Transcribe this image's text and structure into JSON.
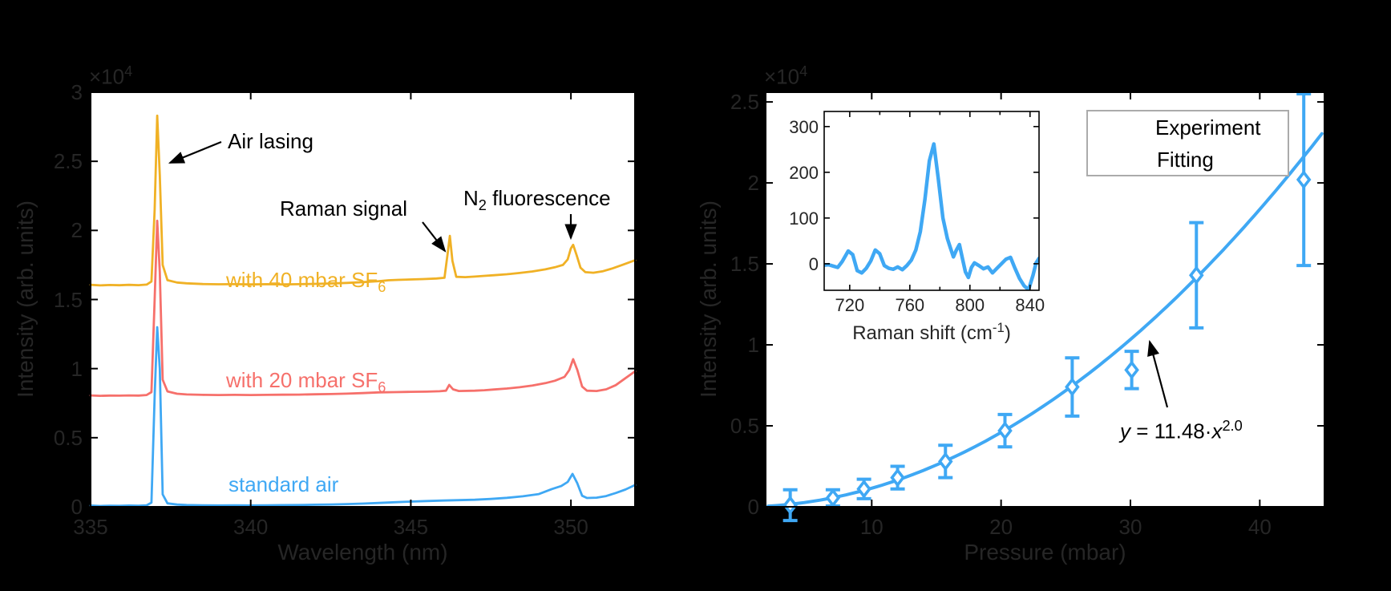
{
  "panel_a": {
    "exp_base": "×10",
    "exp_exp": "4",
    "ylabel": "Intensity (arb. units)",
    "xlabel": "Wavelength (nm)",
    "annotations": {
      "air_lasing": "Air lasing",
      "raman_signal": "Raman signal",
      "n2_pre": "N",
      "n2_sub": "2",
      "n2_post": " fluorescence"
    },
    "curve_labels": {
      "sf40_pre": "with 40 mbar SF",
      "sf40_sub": "6",
      "sf20_pre": "with 20 mbar SF",
      "sf20_sub": "6",
      "standard_air": "standard air"
    }
  },
  "panel_b": {
    "exp_base": "×10",
    "exp_exp": "4",
    "ylabel": "Intensity (arb. units)",
    "xlabel": "Pressure (mbar)",
    "legend": {
      "experiment": "Experiment",
      "fitting": "Fitting"
    },
    "equation": {
      "y": "y",
      "mid": " = 11.48·",
      "x": "x",
      "exp": "2.0"
    },
    "inset": {
      "xlabel_pre": "Raman shift (cm",
      "xlabel_sup": "-1",
      "xlabel_post": ")"
    }
  },
  "colors": {
    "sf40_yellow": "#F0B125",
    "sf20_red": "#F6706B",
    "blue": "#3FA8F4",
    "tick_text": "#262626",
    "annotation_text": "#000000",
    "legend_border": "#ababab",
    "plot_bg": "#ffffff",
    "figure_bg": "#000000"
  },
  "chart_data": [
    {
      "id": "spectra",
      "type": "line",
      "xlabel": "Wavelength (nm)",
      "ylabel": "Intensity (arb. units)",
      "xlim": [
        335,
        352
      ],
      "ylim": [
        0,
        30000
      ],
      "x_ticks": [
        [
          335,
          "335"
        ],
        [
          340,
          "340"
        ],
        [
          345,
          "345"
        ],
        [
          350,
          "350"
        ]
      ],
      "y_ticks": [
        [
          0,
          "0"
        ],
        [
          5000,
          "0.5"
        ],
        [
          10000,
          "1"
        ],
        [
          15000,
          "1.5"
        ],
        [
          20000,
          "2"
        ],
        [
          25000,
          "2.5"
        ],
        [
          30000,
          "3"
        ]
      ],
      "y_scale": "×10^4",
      "annotations": [
        "Air lasing",
        "Raman signal",
        "N2 fluorescence"
      ],
      "series": [
        {
          "name": "with 40 mbar SF6",
          "color": "#F0B125",
          "offset": 16000,
          "points": [
            [
              335,
              16060
            ],
            [
              335.3,
              16020
            ],
            [
              335.6,
              16050
            ],
            [
              335.9,
              16030
            ],
            [
              336.2,
              16060
            ],
            [
              336.5,
              16040
            ],
            [
              336.75,
              16080
            ],
            [
              336.9,
              16300
            ],
            [
              337.0,
              21500
            ],
            [
              337.08,
              28300
            ],
            [
              337.16,
              24000
            ],
            [
              337.25,
              17500
            ],
            [
              337.4,
              16400
            ],
            [
              337.7,
              16230
            ],
            [
              338,
              16170
            ],
            [
              338.5,
              16120
            ],
            [
              339,
              16100
            ],
            [
              339.5,
              16110
            ],
            [
              340,
              16090
            ],
            [
              340.5,
              16110
            ],
            [
              341,
              16090
            ],
            [
              341.5,
              16110
            ],
            [
              342,
              16130
            ],
            [
              342.5,
              16160
            ],
            [
              343,
              16200
            ],
            [
              343.5,
              16260
            ],
            [
              344,
              16330
            ],
            [
              344.3,
              16390
            ],
            [
              344.6,
              16420
            ],
            [
              345,
              16450
            ],
            [
              345.4,
              16480
            ],
            [
              345.8,
              16520
            ],
            [
              346.05,
              16570
            ],
            [
              346.15,
              18300
            ],
            [
              346.22,
              19600
            ],
            [
              346.3,
              17800
            ],
            [
              346.42,
              16640
            ],
            [
              346.7,
              16620
            ],
            [
              347,
              16660
            ],
            [
              347.3,
              16710
            ],
            [
              347.6,
              16760
            ],
            [
              348,
              16830
            ],
            [
              348.4,
              16920
            ],
            [
              348.8,
              17030
            ],
            [
              349.2,
              17180
            ],
            [
              349.5,
              17330
            ],
            [
              349.75,
              17500
            ],
            [
              349.9,
              17900
            ],
            [
              350.0,
              18700
            ],
            [
              350.07,
              18960
            ],
            [
              350.18,
              18200
            ],
            [
              350.3,
              17300
            ],
            [
              350.45,
              16980
            ],
            [
              350.7,
              16940
            ],
            [
              351,
              17050
            ],
            [
              351.3,
              17250
            ],
            [
              351.6,
              17500
            ],
            [
              352,
              17840
            ]
          ]
        },
        {
          "name": "with 20 mbar SF6",
          "color": "#F6706B",
          "offset": 8000,
          "points": [
            [
              335,
              8060
            ],
            [
              335.3,
              8030
            ],
            [
              335.6,
              8050
            ],
            [
              335.9,
              8040
            ],
            [
              336.2,
              8060
            ],
            [
              336.5,
              8050
            ],
            [
              336.75,
              8090
            ],
            [
              336.9,
              8300
            ],
            [
              337.0,
              15000
            ],
            [
              337.08,
              20700
            ],
            [
              337.16,
              17000
            ],
            [
              337.25,
              9200
            ],
            [
              337.4,
              8350
            ],
            [
              337.7,
              8180
            ],
            [
              338,
              8130
            ],
            [
              338.5,
              8100
            ],
            [
              339,
              8090
            ],
            [
              339.5,
              8100
            ],
            [
              340,
              8090
            ],
            [
              340.5,
              8100
            ],
            [
              341,
              8110
            ],
            [
              341.5,
              8120
            ],
            [
              342,
              8140
            ],
            [
              342.5,
              8160
            ],
            [
              343,
              8190
            ],
            [
              343.5,
              8230
            ],
            [
              344,
              8280
            ],
            [
              344.5,
              8300
            ],
            [
              345,
              8320
            ],
            [
              345.5,
              8330
            ],
            [
              345.9,
              8360
            ],
            [
              346.1,
              8400
            ],
            [
              346.2,
              8820
            ],
            [
              346.32,
              8500
            ],
            [
              346.5,
              8380
            ],
            [
              347,
              8400
            ],
            [
              347.3,
              8440
            ],
            [
              347.6,
              8490
            ],
            [
              348,
              8560
            ],
            [
              348.4,
              8650
            ],
            [
              348.8,
              8780
            ],
            [
              349.2,
              8950
            ],
            [
              349.5,
              9120
            ],
            [
              349.8,
              9400
            ],
            [
              349.95,
              9900
            ],
            [
              350.07,
              10680
            ],
            [
              350.2,
              9900
            ],
            [
              350.35,
              8700
            ],
            [
              350.5,
              8400
            ],
            [
              350.8,
              8380
            ],
            [
              351.1,
              8500
            ],
            [
              351.4,
              8800
            ],
            [
              351.7,
              9300
            ],
            [
              352,
              9800
            ]
          ]
        },
        {
          "name": "standard air",
          "color": "#3FA8F4",
          "offset": 0,
          "points": [
            [
              335,
              90
            ],
            [
              335.3,
              60
            ],
            [
              335.6,
              80
            ],
            [
              335.9,
              70
            ],
            [
              336.2,
              90
            ],
            [
              336.5,
              80
            ],
            [
              336.75,
              110
            ],
            [
              336.9,
              300
            ],
            [
              337.0,
              8000
            ],
            [
              337.08,
              13000
            ],
            [
              337.16,
              10000
            ],
            [
              337.25,
              900
            ],
            [
              337.4,
              250
            ],
            [
              337.7,
              160
            ],
            [
              338,
              130
            ],
            [
              338.5,
              110
            ],
            [
              339,
              100
            ],
            [
              339.5,
              110
            ],
            [
              340,
              100
            ],
            [
              340.5,
              110
            ],
            [
              341,
              120
            ],
            [
              341.5,
              130
            ],
            [
              342,
              150
            ],
            [
              342.5,
              170
            ],
            [
              343,
              200
            ],
            [
              343.5,
              230
            ],
            [
              344,
              280
            ],
            [
              344.5,
              330
            ],
            [
              345,
              380
            ],
            [
              345.5,
              420
            ],
            [
              346,
              450
            ],
            [
              346.5,
              480
            ],
            [
              347,
              510
            ],
            [
              347.5,
              570
            ],
            [
              348,
              650
            ],
            [
              348.5,
              760
            ],
            [
              349,
              920
            ],
            [
              349.4,
              1280
            ],
            [
              349.7,
              1500
            ],
            [
              349.9,
              1800
            ],
            [
              350.05,
              2380
            ],
            [
              350.2,
              1700
            ],
            [
              350.35,
              800
            ],
            [
              350.5,
              640
            ],
            [
              350.8,
              660
            ],
            [
              351.1,
              780
            ],
            [
              351.4,
              1000
            ],
            [
              351.7,
              1250
            ],
            [
              352,
              1570
            ]
          ]
        }
      ]
    },
    {
      "id": "pressure_dependence",
      "type": "scatter",
      "xlabel": "Pressure (mbar)",
      "ylabel": "Intensity (arb. units)",
      "xlim": [
        1.8,
        45
      ],
      "ylim": [
        0,
        25600
      ],
      "x_ticks": [
        [
          10,
          "10"
        ],
        [
          20,
          "20"
        ],
        [
          30,
          "30"
        ],
        [
          40,
          "40"
        ]
      ],
      "y_ticks": [
        [
          0,
          "0"
        ],
        [
          5000,
          "0.5"
        ],
        [
          10000,
          "1"
        ],
        [
          15000,
          "1.5"
        ],
        [
          20000,
          "2"
        ],
        [
          25000,
          "2.5"
        ]
      ],
      "y_scale": "×10^4",
      "legend_position": "top-right-inside",
      "experiment": {
        "pressure": [
          3.7,
          7.0,
          9.4,
          12.0,
          15.7,
          20.3,
          25.5,
          30.1,
          35.1,
          43.4
        ],
        "intensity": [
          100,
          550,
          1100,
          1800,
          2800,
          4700,
          7400,
          8450,
          14300,
          20200
        ],
        "error": [
          950,
          500,
          600,
          700,
          1000,
          1000,
          1800,
          1150,
          3250,
          5300
        ]
      },
      "fit": {
        "equation": "y = 11.48·x^2.0",
        "coefficient": 11.48,
        "exponent": 2.0,
        "x_range": [
          2,
          44.8
        ]
      }
    },
    {
      "id": "raman_inset",
      "type": "line",
      "xlabel": "Raman shift (cm^-1)",
      "xlim": [
        703,
        846
      ],
      "ylim": [
        -58,
        333
      ],
      "x_ticks": [
        [
          720,
          "720"
        ],
        [
          760,
          "760"
        ],
        [
          800,
          "800"
        ],
        [
          840,
          "840"
        ]
      ],
      "x_minor_ticks": [
        740,
        780,
        820
      ],
      "y_ticks": [
        [
          0,
          "0"
        ],
        [
          100,
          "100"
        ],
        [
          200,
          "200"
        ],
        [
          300,
          "300"
        ]
      ],
      "series": [
        {
          "name": "raman spectrum",
          "color": "#3FA8F4",
          "points": [
            [
              703,
              -3
            ],
            [
              706,
              -2
            ],
            [
              709,
              -5
            ],
            [
              712,
              -8
            ],
            [
              715,
              5
            ],
            [
              719,
              28
            ],
            [
              722,
              20
            ],
            [
              725,
              -15
            ],
            [
              728,
              -20
            ],
            [
              731,
              -10
            ],
            [
              734,
              6
            ],
            [
              737,
              30
            ],
            [
              740,
              22
            ],
            [
              743,
              -4
            ],
            [
              746,
              -10
            ],
            [
              749,
              -12
            ],
            [
              752,
              -7
            ],
            [
              755,
              -13
            ],
            [
              758,
              -4
            ],
            [
              761,
              8
            ],
            [
              764,
              30
            ],
            [
              767,
              70
            ],
            [
              770,
              140
            ],
            [
              773,
              225
            ],
            [
              776,
              262
            ],
            [
              779,
              185
            ],
            [
              782,
              100
            ],
            [
              785,
              55
            ],
            [
              787,
              35
            ],
            [
              789,
              15
            ],
            [
              791,
              30
            ],
            [
              793,
              42
            ],
            [
              795,
              12
            ],
            [
              797,
              -18
            ],
            [
              799,
              -30
            ],
            [
              801,
              -8
            ],
            [
              803,
              2
            ],
            [
              806,
              -4
            ],
            [
              809,
              -11
            ],
            [
              812,
              -7
            ],
            [
              815,
              -20
            ],
            [
              818,
              -10
            ],
            [
              821,
              0
            ],
            [
              824,
              10
            ],
            [
              827,
              14
            ],
            [
              830,
              -10
            ],
            [
              833,
              -32
            ],
            [
              836,
              -48
            ],
            [
              839,
              -57
            ],
            [
              842,
              -25
            ],
            [
              844,
              2
            ],
            [
              846,
              12
            ]
          ]
        }
      ]
    }
  ]
}
